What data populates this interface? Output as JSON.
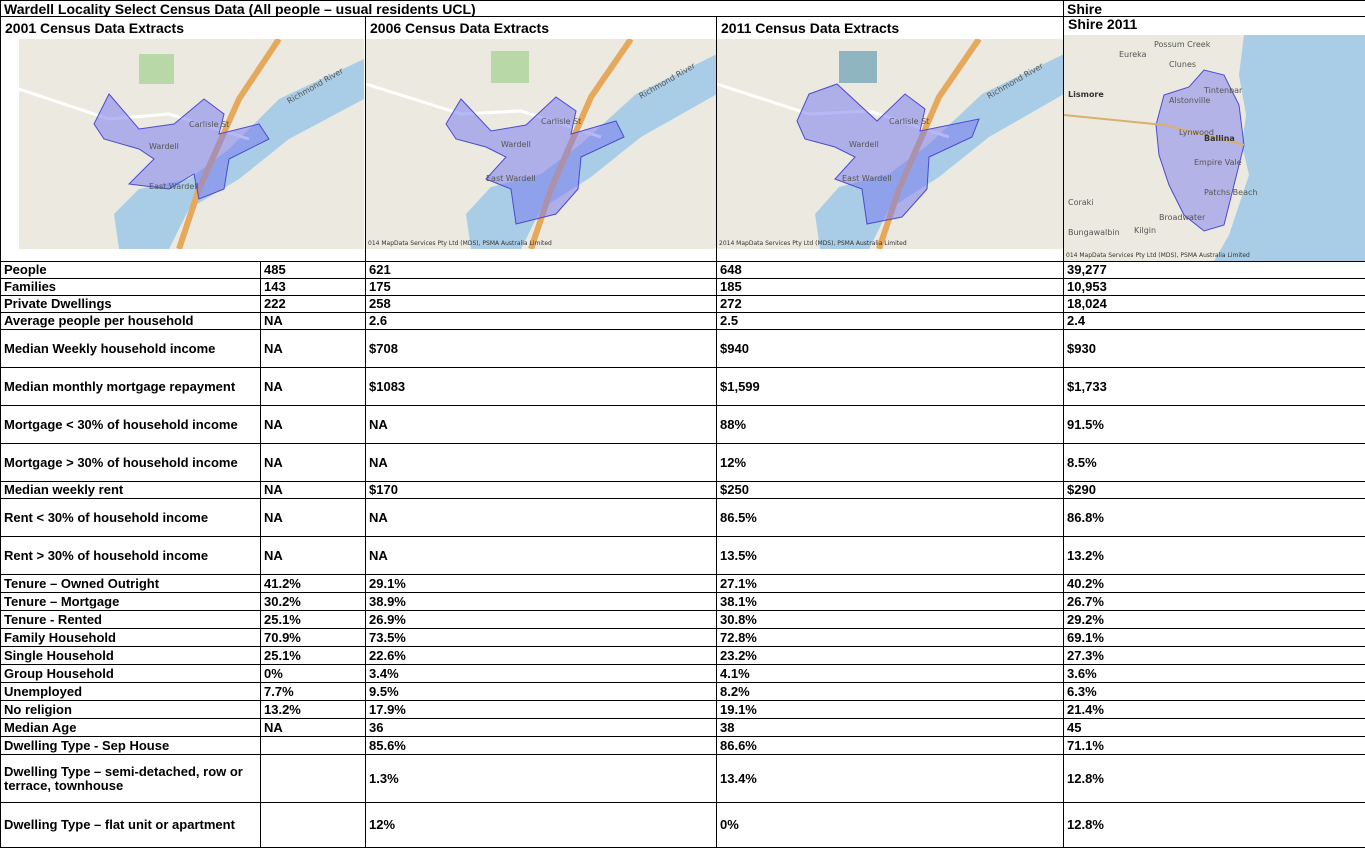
{
  "header": {
    "title": "Wardell  Locality Select Census Data (All people – usual residents UCL)",
    "shire": "Shire"
  },
  "columns": [
    "2001 Census Data Extracts",
    "2006 Census Data Extracts",
    "2011 Census Data Extracts",
    "Shire 2011"
  ],
  "maps": [
    {
      "labels": [
        "Richmond River",
        "Carlisle St",
        "Wardell",
        "East Wardell"
      ]
    },
    {
      "labels": [
        "Richmond River",
        "Carlisle St",
        "Wardell",
        "East Wardell"
      ],
      "credit": "014 MapData Services Pty Ltd (MDS), PSMA Australia Limited"
    },
    {
      "labels": [
        "Richmond River",
        "Carlisle St",
        "Wardell",
        "East Wardell"
      ],
      "credit": "2014 MapData Services Pty Ltd (MDS), PSMA Australia Limited"
    },
    {
      "labels": [
        "Possum Creek",
        "Eureka",
        "Clunes",
        "Lismore",
        "Alstonville",
        "Tintenbar",
        "Lynwood",
        "Ballina",
        "Empire Vale",
        "Patchs Beach",
        "Coraki",
        "Broadwater",
        "Bungawalbin",
        "Kilgin"
      ],
      "credit": "014 MapData Services Pty Ltd (MDS), PSMA Australia Limited"
    }
  ],
  "table": {
    "rows": [
      [
        "People",
        "485",
        "621",
        "648",
        "39,277"
      ],
      [
        "Families",
        "143",
        "175",
        "185",
        "10,953"
      ],
      [
        "Private Dwellings",
        "222",
        "258",
        "272",
        "18,024"
      ],
      [
        "Average people per household",
        "NA",
        "2.6",
        "2.5",
        "2.4"
      ],
      [
        "Median Weekly household income",
        "NA",
        "$708",
        "$940",
        "$930"
      ],
      [
        "Median monthly mortgage repayment",
        "NA",
        "$1083",
        "$1,599",
        "$1,733"
      ],
      [
        "Mortgage < 30% of household income",
        "NA",
        "NA",
        "88%",
        "91.5%"
      ],
      [
        "Mortgage > 30% of household income",
        "NA",
        "NA",
        "12%",
        "8.5%"
      ],
      [
        "Median weekly rent",
        "NA",
        "$170",
        "$250",
        "$290"
      ],
      [
        "Rent < 30% of household income",
        "NA",
        "NA",
        "86.5%",
        "86.8%"
      ],
      [
        "Rent > 30% of household income",
        "NA",
        "NA",
        "13.5%",
        "13.2%"
      ],
      [
        "Tenure – Owned Outright",
        "41.2%",
        "29.1%",
        "27.1%",
        "40.2%"
      ],
      [
        "Tenure – Mortgage",
        "30.2%",
        "38.9%",
        "38.1%",
        "26.7%"
      ],
      [
        "Tenure - Rented",
        "25.1%",
        "26.9%",
        "30.8%",
        "29.2%"
      ],
      [
        "Family Household",
        "70.9%",
        "73.5%",
        "72.8%",
        "69.1%"
      ],
      [
        "Single Household",
        "25.1%",
        "22.6%",
        "23.2%",
        "27.3%"
      ],
      [
        "Group Household",
        "0%",
        "3.4%",
        "4.1%",
        "3.6%"
      ],
      [
        "Unemployed",
        "7.7%",
        "9.5%",
        "8.2%",
        "6.3%"
      ],
      [
        "No religion",
        "13.2%",
        "17.9%",
        "19.1%",
        "21.4%"
      ],
      [
        "Median Age",
        "NA",
        "36",
        "38",
        "45"
      ],
      [
        "Dwelling Type  - Sep House",
        null,
        "85.6%",
        "86.6%",
        "71.1%"
      ],
      [
        "Dwelling Type – semi-detached, row or terrace, townhouse",
        null,
        "1.3%",
        "13.4%",
        "12.8%"
      ],
      [
        "Dwelling Type – flat unit or apartment",
        null,
        "12%",
        "0%",
        "12.8%"
      ]
    ]
  }
}
